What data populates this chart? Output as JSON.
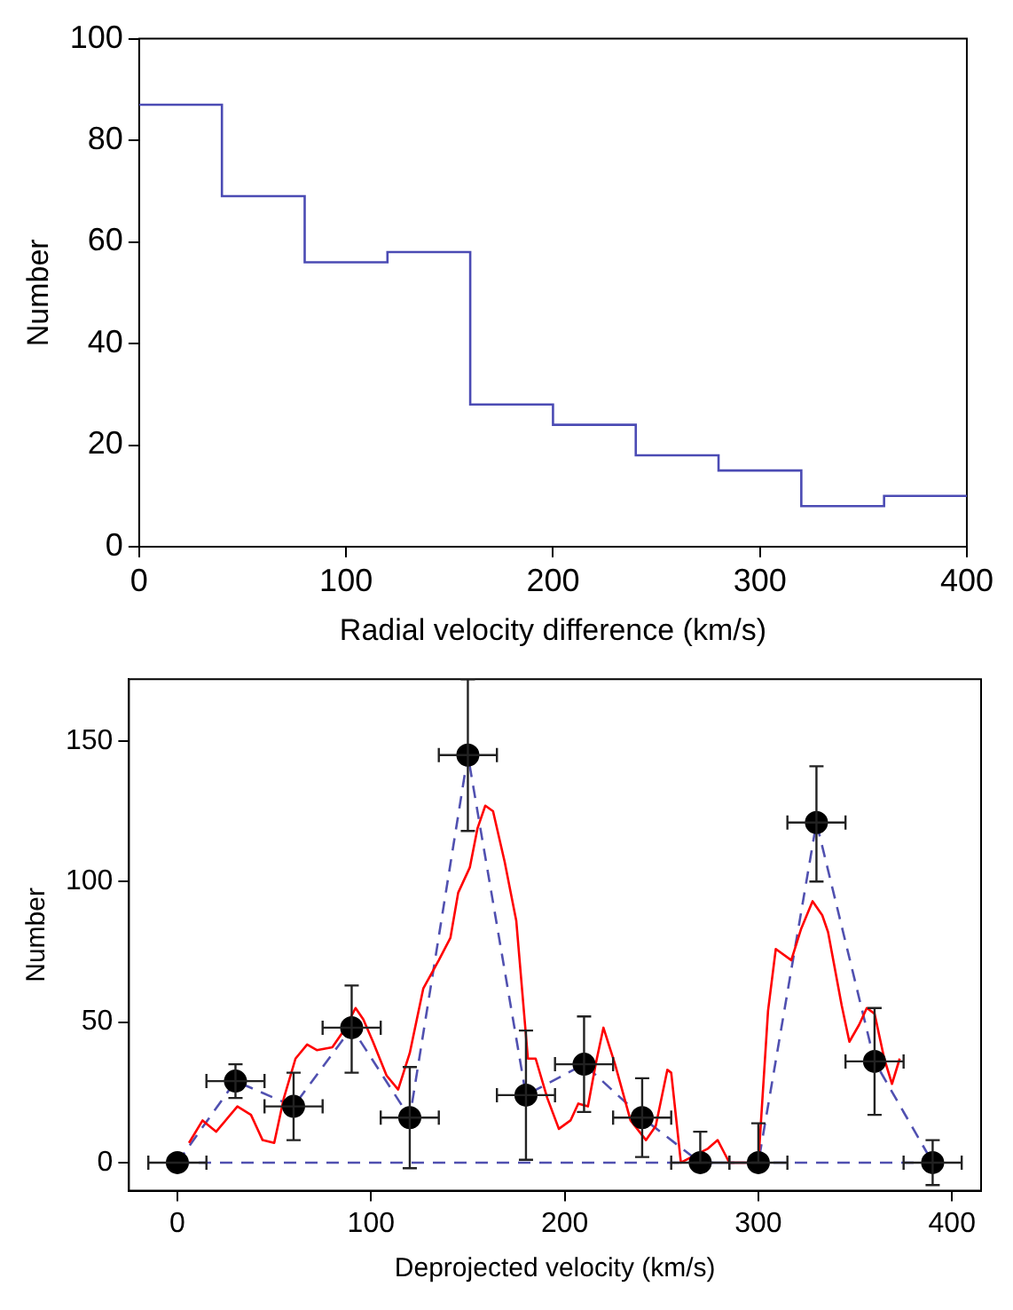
{
  "chart_data": [
    {
      "type": "histogram",
      "xlabel": "Radial velocity difference (km/s)",
      "ylabel": "Number",
      "bins": [
        0,
        40,
        80,
        120,
        160,
        200,
        240,
        280,
        320,
        360,
        400
      ],
      "values": [
        87,
        69,
        56,
        58,
        28,
        24,
        18,
        15,
        8,
        10
      ],
      "color": "#4b4bb4",
      "xlim": [
        0,
        400
      ],
      "xticks": [
        0,
        100,
        200,
        300,
        400
      ],
      "ylim": [
        0,
        100
      ],
      "yticks": [
        0,
        20,
        40,
        60,
        80,
        100
      ],
      "grid": false,
      "legend": false
    },
    {
      "type": "scatter",
      "xlabel": "Deprojected velocity (km/s)",
      "ylabel": "Number",
      "xlim": [
        -25,
        415
      ],
      "xticks": [
        0,
        100,
        200,
        300,
        400
      ],
      "ylim": [
        -10,
        172
      ],
      "yticks": [
        0,
        50,
        100,
        150
      ],
      "grid": false,
      "legend": false,
      "series": [
        {
          "type": "line",
          "color": "#ff0000",
          "x": [
            6,
            13,
            20,
            31,
            38,
            44,
            50,
            55,
            61,
            67,
            72,
            80,
            86,
            92,
            96,
            101,
            108,
            114,
            120,
            127,
            135,
            141,
            145,
            151,
            155,
            159,
            163,
            169,
            175,
            181,
            185,
            191,
            197,
            203,
            207,
            212,
            216,
            220,
            226,
            234,
            242,
            247,
            253,
            255,
            260,
            274,
            279,
            282,
            285,
            292,
            300,
            305,
            309,
            317,
            322,
            328,
            333,
            336,
            343,
            347,
            352,
            356,
            360,
            365,
            369,
            373
          ],
          "values": [
            7,
            15,
            11,
            20,
            17,
            8,
            7,
            23,
            37,
            42,
            40,
            41,
            47,
            55,
            51,
            43,
            31,
            26,
            39,
            62,
            72,
            80,
            96,
            105,
            119,
            127,
            125,
            107,
            86,
            37,
            37,
            23,
            12,
            15,
            21,
            20,
            35,
            48,
            35,
            15,
            8,
            13,
            33,
            32,
            0,
            5,
            8,
            4,
            0,
            0,
            0,
            54,
            76,
            72,
            83,
            93,
            88,
            82,
            56,
            43,
            49,
            55,
            53,
            37,
            28,
            37
          ]
        },
        {
          "type": "line",
          "line_style": "dashed",
          "color": "#5050b0",
          "x": [
            0,
            390
          ],
          "values": [
            0,
            0
          ]
        },
        {
          "type": "line",
          "line_style": "dashed",
          "color": "#5050b0",
          "x": [
            0,
            30,
            60,
            90,
            120,
            150,
            180,
            210,
            240,
            270,
            300,
            330,
            360,
            390
          ],
          "values": [
            0,
            29,
            20,
            48,
            16,
            145,
            24,
            35,
            16,
            0,
            0,
            121,
            36,
            0
          ]
        },
        {
          "type": "scatter",
          "marker": "circle",
          "color": "#000000",
          "x": [
            0,
            30,
            60,
            90,
            120,
            150,
            180,
            210,
            240,
            270,
            300,
            330,
            360,
            390
          ],
          "values": [
            0,
            29,
            20,
            48,
            16,
            145,
            24,
            35,
            16,
            0,
            0,
            121,
            36,
            0
          ],
          "errors": [
            null,
            [
              23,
              35
            ],
            [
              8,
              32
            ],
            [
              32,
              63
            ],
            [
              -2,
              34
            ],
            [
              118,
              172
            ],
            [
              1,
              47
            ],
            [
              18,
              52
            ],
            [
              2,
              30
            ],
            [
              0,
              11
            ],
            [
              0,
              14
            ],
            [
              100,
              141
            ],
            [
              17,
              55
            ],
            [
              -8,
              8
            ]
          ],
          "xerrors": [
            15,
            15,
            15,
            15,
            15,
            15,
            15,
            15,
            15,
            15,
            15,
            15,
            15,
            15
          ]
        }
      ]
    }
  ]
}
